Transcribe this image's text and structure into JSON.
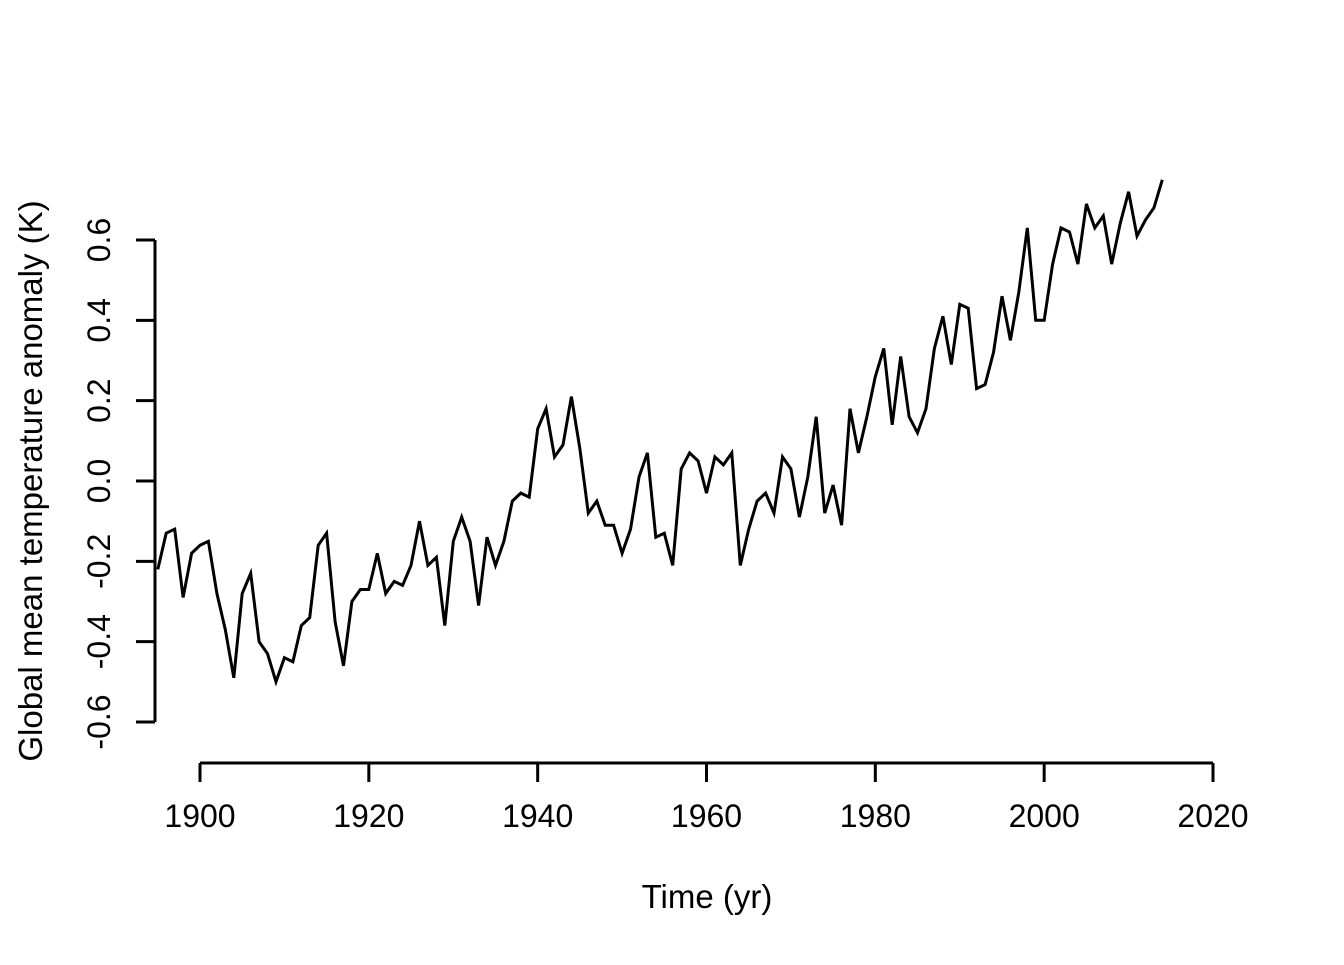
{
  "figure": {
    "background": "#ffffff",
    "line_color": "#000000",
    "axis_color": "#000000"
  },
  "chart_data": {
    "type": "line",
    "title": "",
    "xlabel": "Time (yr)",
    "ylabel": "Global mean temperature anomaly (K)",
    "legend": null,
    "grid": false,
    "x_tick_labels": [
      "1900",
      "1920",
      "1940",
      "1960",
      "1980",
      "2000",
      "2020"
    ],
    "x_ticks": [
      1900,
      1920,
      1940,
      1960,
      1980,
      2000,
      2020
    ],
    "y_tick_labels": [
      "-0.6",
      "-0.4",
      "-0.2",
      "0.0",
      "0.2",
      "0.4",
      "0.6"
    ],
    "y_ticks": [
      -0.6,
      -0.4,
      -0.2,
      0.0,
      0.2,
      0.4,
      0.6
    ],
    "y_axis_range": [
      -0.6,
      0.6
    ],
    "x_axis_range": [
      1900,
      2020
    ],
    "x": [
      1895,
      1896,
      1897,
      1898,
      1899,
      1900,
      1901,
      1902,
      1903,
      1904,
      1905,
      1906,
      1907,
      1908,
      1909,
      1910,
      1911,
      1912,
      1913,
      1914,
      1915,
      1916,
      1917,
      1918,
      1919,
      1920,
      1921,
      1922,
      1923,
      1924,
      1925,
      1926,
      1927,
      1928,
      1929,
      1930,
      1931,
      1932,
      1933,
      1934,
      1935,
      1936,
      1937,
      1938,
      1939,
      1940,
      1941,
      1942,
      1943,
      1944,
      1945,
      1946,
      1947,
      1948,
      1949,
      1950,
      1951,
      1952,
      1953,
      1954,
      1955,
      1956,
      1957,
      1958,
      1959,
      1960,
      1961,
      1962,
      1963,
      1964,
      1965,
      1966,
      1967,
      1968,
      1969,
      1970,
      1971,
      1972,
      1973,
      1974,
      1975,
      1976,
      1977,
      1978,
      1979,
      1980,
      1981,
      1982,
      1983,
      1984,
      1985,
      1986,
      1987,
      1988,
      1989,
      1990,
      1991,
      1992,
      1993,
      1994,
      1995,
      1996,
      1997,
      1998,
      1999,
      2000,
      2001,
      2002,
      2003,
      2004,
      2005,
      2006,
      2007,
      2008,
      2009,
      2010,
      2011,
      2012,
      2013,
      2014
    ],
    "values": [
      -0.22,
      -0.13,
      -0.12,
      -0.29,
      -0.18,
      -0.16,
      -0.15,
      -0.28,
      -0.37,
      -0.49,
      -0.28,
      -0.23,
      -0.4,
      -0.43,
      -0.5,
      -0.44,
      -0.45,
      -0.36,
      -0.34,
      -0.16,
      -0.13,
      -0.35,
      -0.46,
      -0.3,
      -0.27,
      -0.27,
      -0.18,
      -0.28,
      -0.25,
      -0.26,
      -0.21,
      -0.1,
      -0.21,
      -0.19,
      -0.36,
      -0.15,
      -0.09,
      -0.15,
      -0.31,
      -0.14,
      -0.21,
      -0.15,
      -0.05,
      -0.03,
      -0.04,
      0.13,
      0.18,
      0.06,
      0.09,
      0.21,
      0.08,
      -0.08,
      -0.05,
      -0.11,
      -0.11,
      -0.18,
      -0.12,
      0.01,
      0.07,
      -0.14,
      -0.13,
      -0.21,
      0.03,
      0.07,
      0.05,
      -0.03,
      0.06,
      0.04,
      0.07,
      -0.21,
      -0.12,
      -0.05,
      -0.03,
      -0.08,
      0.06,
      0.03,
      -0.09,
      0.01,
      0.16,
      -0.08,
      -0.01,
      -0.11,
      0.18,
      0.07,
      0.16,
      0.26,
      0.33,
      0.14,
      0.31,
      0.16,
      0.12,
      0.18,
      0.33,
      0.41,
      0.29,
      0.44,
      0.43,
      0.23,
      0.24,
      0.32,
      0.46,
      0.35,
      0.47,
      0.63,
      0.4,
      0.4,
      0.54,
      0.63,
      0.62,
      0.54,
      0.69,
      0.63,
      0.66,
      0.54,
      0.64,
      0.72,
      0.61,
      0.65,
      0.68,
      0.75
    ]
  }
}
